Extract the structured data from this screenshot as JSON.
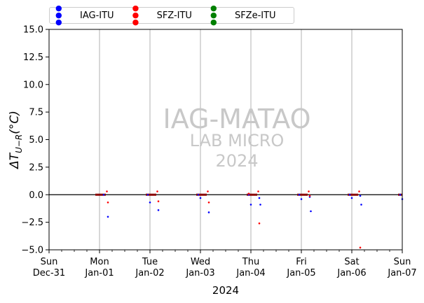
{
  "chart_data": {
    "type": "scatter",
    "title": "",
    "ylabel": "ΔT_{U−R}(°C)",
    "ylabel_main": "ΔT",
    "ylabel_sub": "U−R",
    "ylabel_unit": "(°C)",
    "xlabel": "2024",
    "ylim": [
      -5,
      15
    ],
    "yticks": [
      "−5.0",
      "−2.5",
      "0.0",
      "2.5",
      "5.0",
      "7.5",
      "10.0",
      "12.5",
      "15.0"
    ],
    "ytick_values": [
      -5,
      -2.5,
      0,
      2.5,
      5,
      7.5,
      10,
      12.5,
      15
    ],
    "xlim": [
      "2023-12-31",
      "2024-01-07"
    ],
    "xticks": [
      {
        "day": "Sun",
        "date": "Dec-31"
      },
      {
        "day": "Mon",
        "date": "Jan-01"
      },
      {
        "day": "Tue",
        "date": "Jan-02"
      },
      {
        "day": "Wed",
        "date": "Jan-03"
      },
      {
        "day": "Thu",
        "date": "Jan-04"
      },
      {
        "day": "Fri",
        "date": "Jan-05"
      },
      {
        "day": "Sat",
        "date": "Jan-06"
      },
      {
        "day": "Sun",
        "date": "Jan-07"
      }
    ],
    "grid": "vertical",
    "legend_position": "top-left",
    "watermark": {
      "line1": "IAG-MATAO",
      "line2": "LAB MICRO",
      "line3": "2024"
    },
    "series": [
      {
        "name": "IAG-ITU",
        "color": "#0000ff",
        "points": [
          [
            "2024-01-01 02:00",
            0.0
          ],
          [
            "2024-01-01 04:00",
            -2.0
          ],
          [
            "2024-01-01 23:00",
            0.0
          ],
          [
            "2024-01-02 00:00",
            -0.7
          ],
          [
            "2024-01-02 04:00",
            -1.4
          ],
          [
            "2024-01-02 23:00",
            0.0
          ],
          [
            "2024-01-03 00:00",
            -0.3
          ],
          [
            "2024-01-03 04:00",
            -1.6
          ],
          [
            "2024-01-03 23:00",
            0.0
          ],
          [
            "2024-01-04 00:00",
            -0.9
          ],
          [
            "2024-01-04 04:00",
            -0.3
          ],
          [
            "2024-01-04 04:30",
            -0.9
          ],
          [
            "2024-01-04 23:00",
            0.0
          ],
          [
            "2024-01-05 00:00",
            -0.4
          ],
          [
            "2024-01-05 04:00",
            -0.2
          ],
          [
            "2024-01-05 04:30",
            -1.5
          ],
          [
            "2024-01-05 23:00",
            0.0
          ],
          [
            "2024-01-06 00:00",
            -0.3
          ],
          [
            "2024-01-06 04:00",
            -0.1
          ],
          [
            "2024-01-06 04:30",
            -0.9
          ],
          [
            "2024-01-06 23:00",
            0.0
          ],
          [
            "2024-01-07 00:00",
            -0.4
          ]
        ]
      },
      {
        "name": "SFZ-ITU",
        "color": "#ff0000",
        "points": [
          [
            "2024-01-01 03:30",
            0.3
          ],
          [
            "2024-01-01 04:00",
            -0.7
          ],
          [
            "2024-01-02 03:30",
            0.3
          ],
          [
            "2024-01-02 04:00",
            -0.6
          ],
          [
            "2024-01-03 03:30",
            0.3
          ],
          [
            "2024-01-03 04:00",
            -0.7
          ],
          [
            "2024-01-03 23:00",
            0.1
          ],
          [
            "2024-01-04 03:30",
            0.3
          ],
          [
            "2024-01-04 04:00",
            -2.6
          ],
          [
            "2024-01-05 03:30",
            0.3
          ],
          [
            "2024-01-05 04:00",
            -0.1
          ],
          [
            "2024-01-06 03:30",
            0.3
          ],
          [
            "2024-01-06 04:00",
            -4.8
          ]
        ]
      },
      {
        "name": "SFZe-ITU",
        "color": "#008000",
        "points": []
      }
    ]
  }
}
